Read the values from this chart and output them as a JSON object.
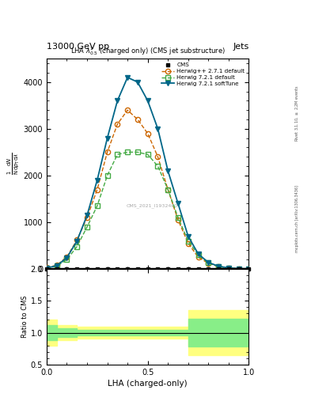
{
  "title_top": "13000 GeV pp",
  "title_right": "Jets",
  "plot_title": "LHA $\\lambda^{1}_{0.5}$ (charged only) (CMS jet substructure)",
  "xlabel": "LHA (charged-only)",
  "ylabel": "$\\frac{1}{\\mathrm{N}} \\frac{\\mathrm{d}N}{\\mathrm{d}p_\\mathrm{T}\\,\\mathrm{d}\\lambda}$",
  "ylabel_ratio": "Ratio to CMS",
  "right_label_top": "Rivet 3.1.10, $\\geq$ 2.2M events",
  "right_label_bot": "mcplots.cern.ch [arXiv:1306.3436]",
  "watermark": "CMS_2021_I1932460",
  "cms_x": [
    0.0,
    0.05,
    0.1,
    0.15,
    0.2,
    0.25,
    0.3,
    0.35,
    0.4,
    0.45,
    0.5,
    0.55,
    0.6,
    0.65,
    0.7,
    0.75,
    0.8,
    0.85,
    0.9,
    0.95,
    1.0
  ],
  "cms_y": [
    0,
    0,
    0,
    0,
    0,
    0,
    0,
    0,
    0,
    0,
    0,
    0,
    0,
    0,
    0,
    0,
    0,
    0,
    0,
    0,
    0
  ],
  "herwig_pp_x": [
    0.0,
    0.05,
    0.1,
    0.15,
    0.2,
    0.25,
    0.3,
    0.35,
    0.4,
    0.45,
    0.5,
    0.55,
    0.6,
    0.65,
    0.7,
    0.75,
    0.8,
    0.85,
    0.9,
    0.95,
    1.0
  ],
  "herwig_pp_y": [
    30,
    80,
    260,
    620,
    1100,
    1700,
    2500,
    3100,
    3400,
    3200,
    2900,
    2400,
    1700,
    1050,
    550,
    250,
    120,
    50,
    20,
    8,
    3
  ],
  "herwig721_x": [
    0.0,
    0.05,
    0.1,
    0.15,
    0.2,
    0.25,
    0.3,
    0.35,
    0.4,
    0.45,
    0.5,
    0.55,
    0.6,
    0.65,
    0.7,
    0.75,
    0.8,
    0.85,
    0.9,
    0.95,
    1.0
  ],
  "herwig721_y": [
    20,
    60,
    200,
    480,
    900,
    1350,
    2000,
    2450,
    2500,
    2500,
    2450,
    2200,
    1700,
    1100,
    600,
    300,
    130,
    55,
    22,
    8,
    3
  ],
  "herwig721soft_x": [
    0.0,
    0.05,
    0.1,
    0.15,
    0.2,
    0.25,
    0.3,
    0.35,
    0.4,
    0.45,
    0.5,
    0.55,
    0.6,
    0.65,
    0.7,
    0.75,
    0.8,
    0.85,
    0.9,
    0.95,
    1.0
  ],
  "herwig721soft_y": [
    20,
    70,
    240,
    600,
    1150,
    1900,
    2800,
    3600,
    4100,
    4000,
    3600,
    3000,
    2100,
    1400,
    700,
    320,
    140,
    58,
    22,
    8,
    3
  ],
  "ylim_main": [
    0,
    4500
  ],
  "ylim_ratio": [
    0.5,
    2.0
  ],
  "xlim": [
    0.0,
    1.0
  ],
  "ratio_yellow_x_edges": [
    0.0,
    0.05,
    0.15,
    0.6,
    0.7,
    1.0
  ],
  "ratio_yellow_lo": [
    0.8,
    0.88,
    0.91,
    0.91,
    0.65,
    0.78
  ],
  "ratio_yellow_hi": [
    1.2,
    1.12,
    1.09,
    1.09,
    1.35,
    1.22
  ],
  "ratio_green_x_edges": [
    0.0,
    0.05,
    0.15,
    0.6,
    0.7,
    1.0
  ],
  "ratio_green_lo": [
    0.88,
    0.93,
    0.955,
    0.955,
    0.78,
    0.88
  ],
  "ratio_green_hi": [
    1.12,
    1.07,
    1.045,
    1.045,
    1.22,
    1.12
  ],
  "color_cms": "#000000",
  "color_herwigpp": "#cc6600",
  "color_herwig721": "#44aa44",
  "color_herwig721soft": "#006688",
  "bg_color": "#ffffff"
}
